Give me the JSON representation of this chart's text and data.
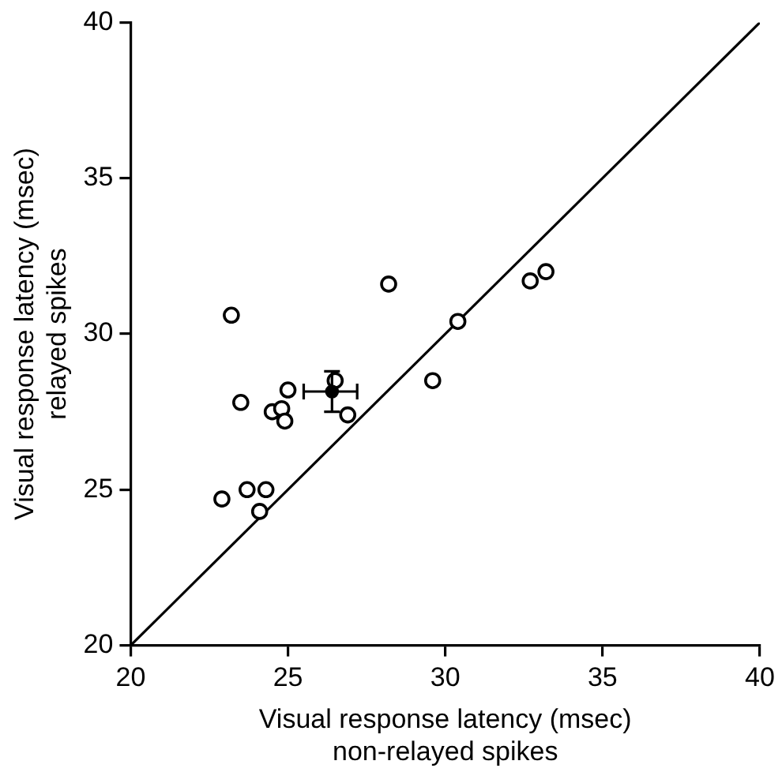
{
  "chart_data": {
    "type": "scatter",
    "xlabel": "Visual response latency (msec)\nnon-relayed spikes",
    "ylabel": "Visual response latency (msec)\nrelayed spikes",
    "xlim": [
      20,
      40
    ],
    "ylim": [
      20,
      40
    ],
    "xticks": [
      20,
      25,
      30,
      35,
      40
    ],
    "yticks": [
      20,
      25,
      30,
      35,
      40
    ],
    "grid": false,
    "legend": false,
    "marker": "circle",
    "series": [
      {
        "type": "line",
        "color": "#000000",
        "x": [
          20,
          40
        ],
        "values": [
          20,
          40
        ],
        "marker": "none",
        "line_style": "solid"
      },
      {
        "color": "#000000",
        "x": [
          23.2,
          28.2,
          23.5,
          25.0,
          24.5,
          24.8,
          24.9,
          26.5,
          26.9,
          22.9,
          23.7,
          24.3,
          24.1,
          29.6,
          30.4,
          32.7,
          33.2
        ],
        "values": [
          30.6,
          31.6,
          27.8,
          28.2,
          27.5,
          27.6,
          27.2,
          28.5,
          27.4,
          24.7,
          25.0,
          25.0,
          24.3,
          28.5,
          30.4,
          31.7,
          32.0
        ]
      },
      {
        "color": "#000000",
        "x": [
          26.4
        ],
        "values": [
          28.15
        ],
        "errors": [
          [
            27.5,
            28.8
          ]
        ],
        "xerrors": [
          [
            25.5,
            27.2
          ]
        ]
      }
    ]
  }
}
